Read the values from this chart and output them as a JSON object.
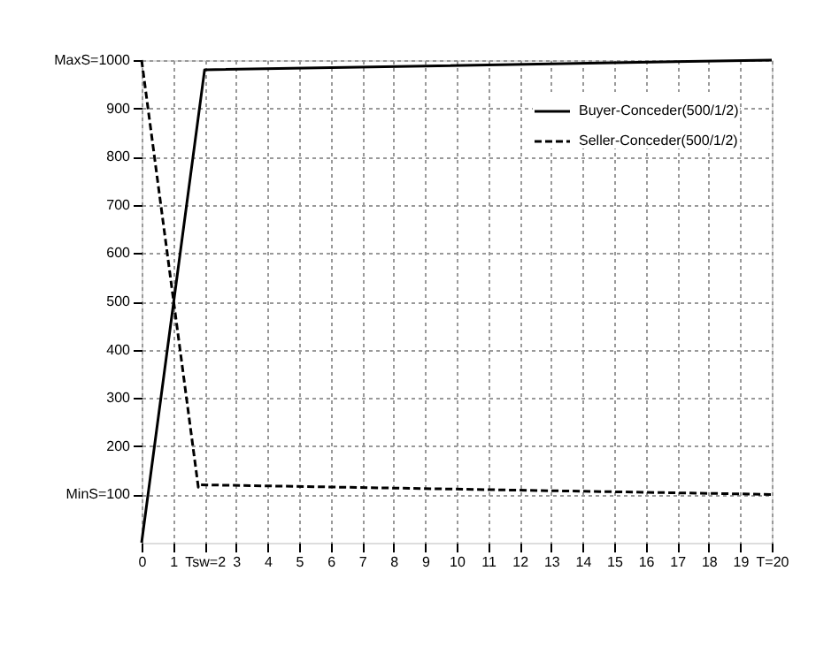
{
  "chart_data": {
    "type": "line",
    "xlim": [
      0,
      20
    ],
    "ylim": [
      0,
      1000
    ],
    "xticks": [
      0,
      1,
      {
        "value": 2,
        "label": "Tsw=2"
      },
      3,
      4,
      5,
      6,
      7,
      8,
      9,
      10,
      11,
      12,
      13,
      14,
      15,
      16,
      17,
      18,
      19,
      {
        "value": 20,
        "label": "T=20"
      }
    ],
    "yticks": [
      {
        "value": 100,
        "label": "MinS=100"
      },
      200,
      300,
      400,
      500,
      600,
      700,
      800,
      900,
      {
        "value": 1000,
        "label": "MaxS=1000"
      }
    ],
    "grid": true,
    "legend": "top right",
    "marker": "none",
    "series": [
      {
        "name": "Buyer-Conceder(500/1/2)",
        "color": "#000000",
        "line_style": "solid",
        "x": [
          0,
          2,
          20
        ],
        "values": [
          0,
          980,
          1000
        ]
      },
      {
        "name": "Seller-Conceder(500/1/2)",
        "color": "#000000",
        "line_style": "dashed",
        "x": [
          0,
          1.8,
          1.85,
          20
        ],
        "values": [
          1000,
          115,
          120,
          100
        ]
      }
    ]
  }
}
